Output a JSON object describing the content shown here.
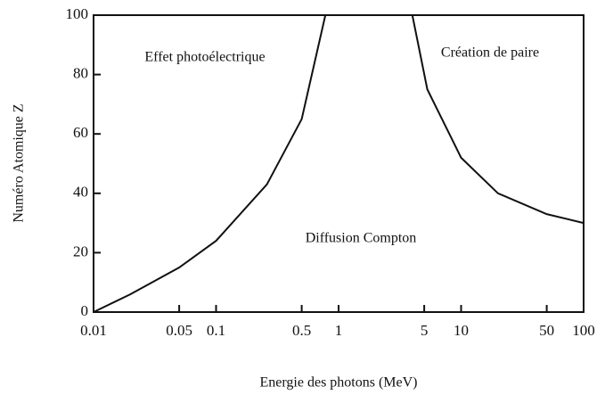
{
  "chart_data": {
    "type": "line",
    "xlabel": "Energie des photons (MeV)",
    "ylabel": "Numéro Atomique Z",
    "annotations": [
      "Effet photoélectrique",
      "Création de paire",
      "Diffusion Compton"
    ],
    "xscale": "log",
    "xlim": [
      0.01,
      100
    ],
    "ylim": [
      0,
      100
    ],
    "xticks": [
      0.01,
      0.05,
      0.1,
      0.5,
      1,
      5,
      10,
      50,
      100
    ],
    "yticks": [
      0,
      20,
      40,
      60,
      80,
      100
    ],
    "series": [
      {
        "color": "#111111",
        "x": [
          0.01,
          0.02,
          0.05,
          0.1,
          0.26,
          0.5,
          0.78
        ],
        "values": [
          0,
          6,
          15,
          24,
          43,
          65,
          100
        ]
      },
      {
        "color": "#111111",
        "x": [
          4,
          5.3,
          10,
          20,
          50,
          100
        ],
        "values": [
          100,
          75,
          52,
          40,
          33,
          30
        ]
      }
    ]
  }
}
